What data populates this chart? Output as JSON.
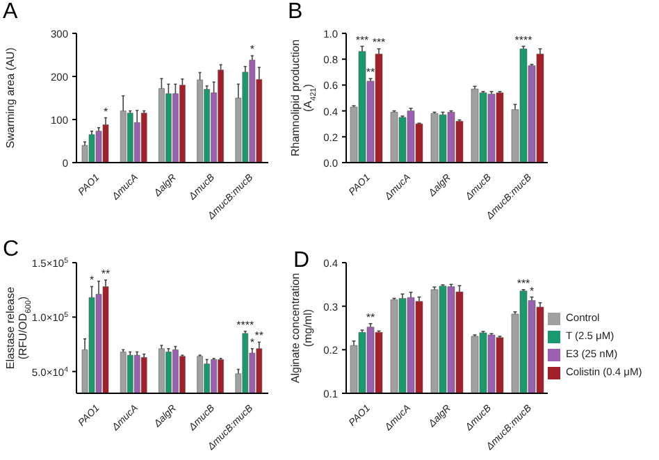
{
  "chart_data": [
    {
      "type": "bar",
      "title": "A",
      "ylabel": "Swarming area (AU)",
      "categories": [
        "PAO1",
        "ΔmucA",
        "ΔalgR",
        "ΔmucB",
        "ΔmucB:mucB"
      ],
      "ylim": [
        0,
        300
      ],
      "yticks": [
        0,
        100,
        200,
        300
      ],
      "series": [
        {
          "color": "#a0a0a0",
          "values": [
            40,
            120,
            172,
            192,
            150
          ],
          "errors": [
            8,
            35,
            23,
            17,
            32
          ]
        },
        {
          "color": "#1a9a6c",
          "values": [
            65,
            115,
            160,
            170,
            210
          ],
          "errors": [
            8,
            5,
            22,
            8,
            13
          ]
        },
        {
          "color": "#9b5fb0",
          "values": [
            73,
            93,
            160,
            162,
            238
          ],
          "errors": [
            8,
            28,
            22,
            25,
            10
          ]
        },
        {
          "color": "#a3202a",
          "values": [
            88,
            115,
            180,
            215,
            193
          ],
          "errors": [
            16,
            5,
            14,
            12,
            28
          ]
        }
      ],
      "annotations": [
        {
          "text": "*",
          "x": "PAO1",
          "y": 104
        },
        {
          "text": "*",
          "x": "ΔmucB:mucB",
          "y": 248
        }
      ]
    },
    {
      "type": "bar",
      "title": "B",
      "ylabel": "Rhamnolipid production (A$_{421}$)",
      "categories": [
        "PAO1",
        "ΔmucA",
        "ΔalgR",
        "ΔmucB",
        "ΔmucB:mucB"
      ],
      "ylim": [
        0,
        1
      ],
      "yticks": [
        {
          "value": 0,
          "label": "0.0"
        },
        0.2,
        0.4,
        0.6,
        0.8,
        {
          "value": 1,
          "label": "1.0"
        }
      ],
      "series": [
        {
          "color": "#a0a0a0",
          "values": [
            0.43,
            0.39,
            0.38,
            0.57,
            0.41
          ],
          "errors": [
            0.01,
            0.01,
            0.01,
            0.02,
            0.04
          ]
        },
        {
          "color": "#1a9a6c",
          "values": [
            0.86,
            0.35,
            0.37,
            0.54,
            0.88
          ],
          "errors": [
            0.04,
            0.01,
            0.02,
            0.01,
            0.02
          ]
        },
        {
          "color": "#9b5fb0",
          "values": [
            0.63,
            0.4,
            0.39,
            0.53,
            0.75
          ],
          "errors": [
            0.02,
            0.02,
            0.01,
            0.02,
            0.01
          ]
        },
        {
          "color": "#a3202a",
          "values": [
            0.84,
            0.3,
            0.32,
            0.54,
            0.84
          ],
          "errors": [
            0.04,
            0.005,
            0.01,
            0.01,
            0.04
          ]
        }
      ],
      "annotations": [
        {
          "text": "***",
          "x": "PAO1",
          "y": 0.9
        },
        {
          "text": "**",
          "x": "PAO1",
          "y": 0.65
        },
        {
          "text": "***",
          "x": "PAO1",
          "y": 0.88
        },
        {
          "text": "****",
          "x": "ΔmucB:mucB",
          "y": 0.9
        }
      ]
    },
    {
      "type": "bar",
      "title": "C",
      "ylabel": "Elastase release (RFU/OD$_{600}$)",
      "categories": [
        "PAO1",
        "ΔmucA",
        "ΔalgR",
        "ΔmucB",
        "ΔmucB:mucB"
      ],
      "ylim": [
        30000,
        150000
      ],
      "yticks": [
        {
          "value": 50000,
          "label": "5.0×10$^{4}$"
        },
        {
          "value": 100000,
          "label": "1.0×10$^{5}$"
        },
        {
          "value": 150000,
          "label": "1.5×10$^{5}$"
        }
      ],
      "series": [
        {
          "color": "#a0a0a0",
          "values": [
            70000,
            68000,
            71000,
            64000,
            48000
          ],
          "errors": [
            10000,
            2000,
            3000,
            1000,
            4000
          ]
        },
        {
          "color": "#1a9a6c",
          "values": [
            118000,
            65000,
            68000,
            57000,
            85000
          ],
          "errors": [
            10000,
            3000,
            3000,
            4000,
            2000
          ]
        },
        {
          "color": "#9b5fb0",
          "values": [
            121000,
            65000,
            70000,
            61000,
            67000
          ],
          "errors": [
            12000,
            3000,
            3000,
            1000,
            4000
          ]
        },
        {
          "color": "#a3202a",
          "values": [
            128000,
            63000,
            64000,
            61000,
            71000
          ],
          "errors": [
            6000,
            3000,
            1000,
            1000,
            6000
          ]
        }
      ],
      "annotations": [
        {
          "text": "*",
          "x": "PAO1",
          "y": 128000
        },
        {
          "text": "**",
          "x": "PAO1",
          "y": 134000
        },
        {
          "text": "****",
          "x": "ΔmucB:mucB",
          "y": 87000
        },
        {
          "text": "*",
          "x": "ΔmucB:mucB",
          "y": 71000
        },
        {
          "text": "**",
          "x": "ΔmucB:mucB",
          "y": 77000
        }
      ]
    },
    {
      "type": "bar",
      "title": "D",
      "ylabel": "Alginate concentration (mg/ml)",
      "categories": [
        "PAO1",
        "ΔmucA",
        "ΔalgR",
        "ΔmucB",
        "ΔmucB:mucB"
      ],
      "ylim": [
        0.1,
        0.4
      ],
      "yticks": [
        0.1,
        0.2,
        0.3,
        0.4
      ],
      "legend": "right",
      "series": [
        {
          "name": "Control",
          "color": "#a0a0a0",
          "values": [
            0.21,
            0.315,
            0.338,
            0.231,
            0.282
          ],
          "errors": [
            0.01,
            0.003,
            0.006,
            0.003,
            0.005
          ]
        },
        {
          "name": "T (2.5 μM)",
          "color": "#1a9a6c",
          "values": [
            0.24,
            0.318,
            0.346,
            0.239,
            0.335
          ],
          "errors": [
            0.005,
            0.01,
            0.003,
            0.003,
            0.003
          ]
        },
        {
          "name": "E3 (25 nM)",
          "color": "#9b5fb0",
          "values": [
            0.252,
            0.32,
            0.345,
            0.234,
            0.313
          ],
          "errors": [
            0.008,
            0.012,
            0.005,
            0.003,
            0.008
          ]
        },
        {
          "name": "Colistin (0.4 μM)",
          "color": "#a3202a",
          "values": [
            0.24,
            0.311,
            0.333,
            0.228,
            0.298
          ],
          "errors": [
            0.003,
            0.01,
            0.014,
            0.003,
            0.01
          ]
        }
      ],
      "annotations": [
        {
          "text": "**",
          "x": "PAO1",
          "y": 0.26
        },
        {
          "text": "***",
          "x": "ΔmucB:mucB",
          "y": 0.338
        },
        {
          "text": "*",
          "x": "ΔmucB:mucB",
          "y": 0.321
        }
      ]
    }
  ]
}
